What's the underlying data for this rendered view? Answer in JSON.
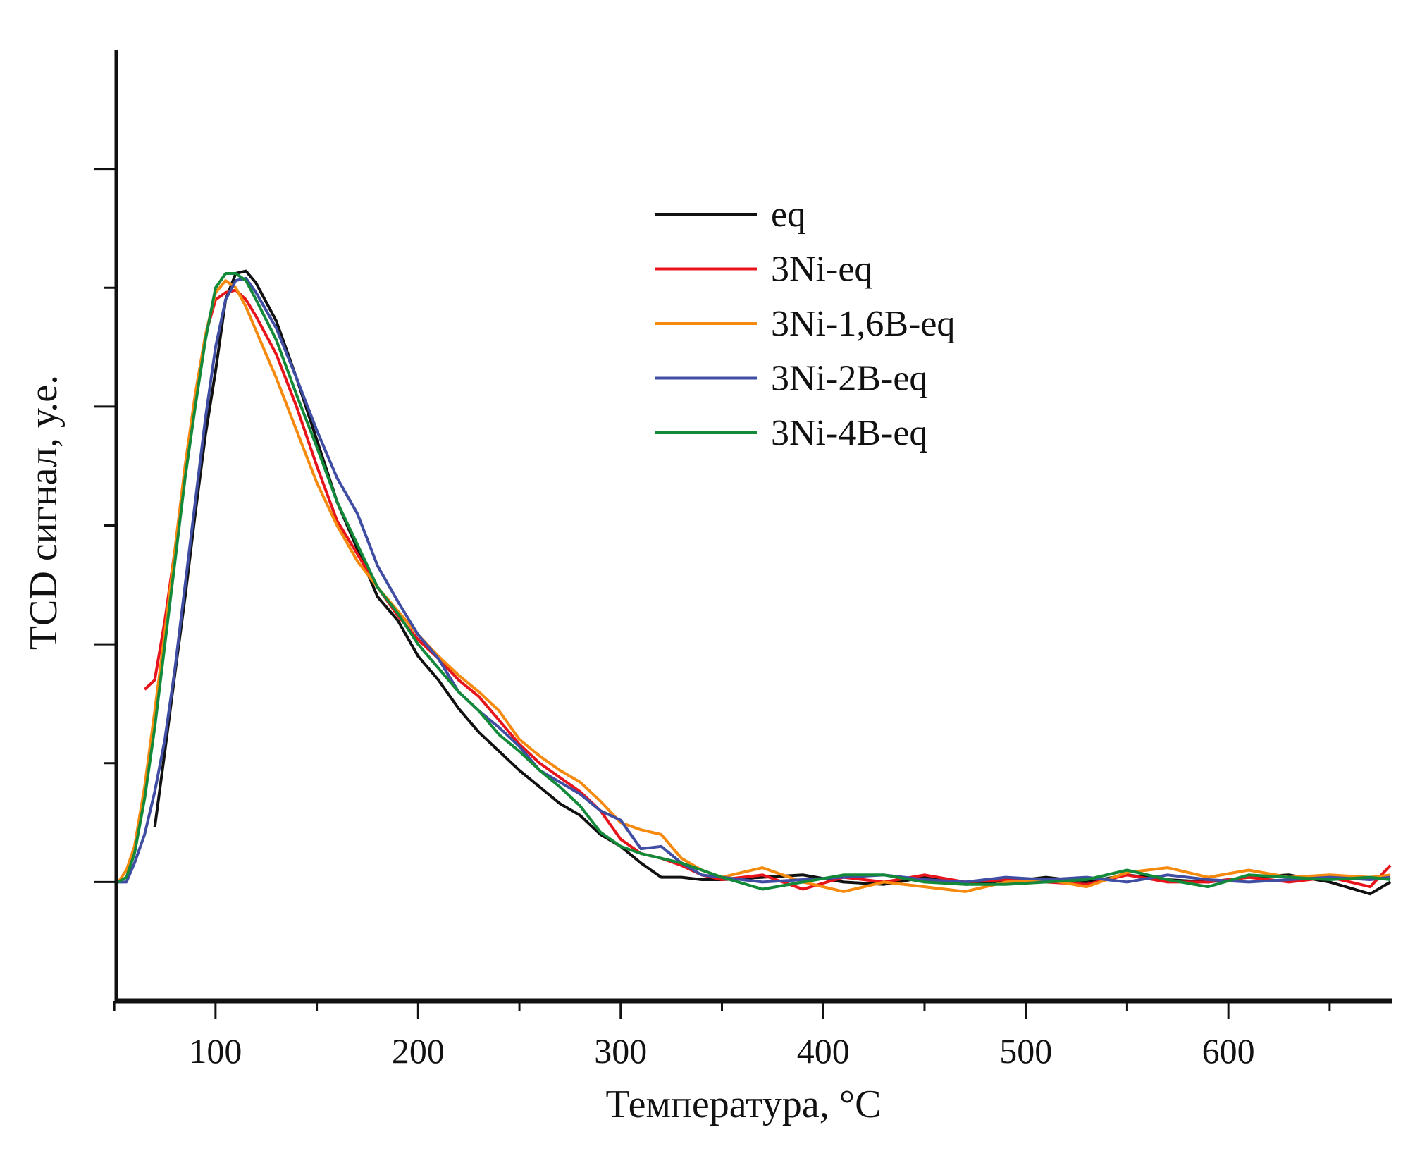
{
  "chart_data": {
    "type": "line",
    "title": "",
    "xlabel": "Температура, °C",
    "ylabel": "TCD сигнал, у.е.",
    "xlim": [
      51,
      681
    ],
    "ylim": [
      -0.5,
      3.5
    ],
    "x_major_ticks": [
      100,
      200,
      300,
      400,
      500,
      600
    ],
    "x_tick_labels": [
      "100",
      "200",
      "300",
      "400",
      "500",
      "600"
    ],
    "x_minor_ticks": [
      50,
      150,
      250,
      350,
      450,
      550,
      650
    ],
    "y_major_ticks": [
      0,
      1,
      2,
      3
    ],
    "y_minor_ticks": [
      0.5,
      1.5,
      2.5
    ],
    "y_tick_labels_shown": false,
    "grid": false,
    "legend_position": "top-right-center",
    "x": [
      52,
      56,
      60,
      65,
      70,
      75,
      80,
      85,
      90,
      95,
      100,
      105,
      110,
      115,
      120,
      130,
      140,
      150,
      160,
      170,
      180,
      190,
      200,
      210,
      220,
      230,
      240,
      250,
      260,
      270,
      280,
      290,
      300,
      310,
      320,
      330,
      340,
      350,
      370,
      390,
      410,
      430,
      450,
      470,
      490,
      510,
      530,
      550,
      570,
      590,
      610,
      630,
      650,
      670,
      680
    ],
    "series": [
      {
        "name": "eq",
        "color": "#111111",
        "values": [
          null,
          null,
          null,
          null,
          0.23,
          0.55,
          0.88,
          1.2,
          1.55,
          1.88,
          2.15,
          2.45,
          2.56,
          2.57,
          2.52,
          2.36,
          2.12,
          1.86,
          1.6,
          1.4,
          1.2,
          1.1,
          0.95,
          0.85,
          0.73,
          0.63,
          0.55,
          0.47,
          0.4,
          0.33,
          0.28,
          0.2,
          0.15,
          0.08,
          0.02,
          0.02,
          0.01,
          0.01,
          0.02,
          0.03,
          0.0,
          -0.01,
          0.02,
          -0.01,
          0.0,
          0.02,
          0.0,
          0.03,
          0.01,
          0.0,
          0.02,
          0.03,
          0.0,
          -0.05,
          0.0
        ]
      },
      {
        "name": "3Ni-eq",
        "color": "#e8141c",
        "values": [
          null,
          null,
          null,
          0.81,
          0.85,
          1.1,
          1.4,
          1.75,
          2.05,
          2.3,
          2.45,
          2.48,
          2.49,
          2.45,
          2.38,
          2.22,
          2.0,
          1.75,
          1.52,
          1.38,
          1.24,
          1.12,
          1.02,
          0.94,
          0.85,
          0.78,
          0.68,
          0.58,
          0.5,
          0.44,
          0.38,
          0.3,
          0.18,
          0.12,
          0.1,
          0.07,
          0.03,
          0.01,
          0.03,
          -0.03,
          0.02,
          0.0,
          0.03,
          0.0,
          0.01,
          0.0,
          -0.01,
          0.03,
          0.0,
          0.0,
          0.02,
          0.0,
          0.02,
          -0.02,
          0.07
        ]
      },
      {
        "name": "3Ni-1,6B-eq",
        "color": "#f58a0f",
        "values": [
          0,
          0.05,
          0.15,
          0.4,
          0.72,
          1.05,
          1.4,
          1.75,
          2.05,
          2.3,
          2.48,
          2.53,
          2.5,
          2.42,
          2.32,
          2.12,
          1.9,
          1.68,
          1.5,
          1.35,
          1.24,
          1.14,
          1.04,
          0.95,
          0.87,
          0.8,
          0.72,
          0.6,
          0.53,
          0.47,
          0.42,
          0.34,
          0.25,
          0.22,
          0.2,
          0.1,
          0.05,
          0.02,
          0.06,
          0.0,
          -0.04,
          0.0,
          -0.02,
          -0.04,
          0.0,
          0.01,
          -0.02,
          0.04,
          0.06,
          0.02,
          0.05,
          0.02,
          0.03,
          0.02,
          0.03
        ]
      },
      {
        "name": "3Ni-2B-eq",
        "color": "#3f4ea3",
        "values": [
          0,
          0.0,
          0.08,
          0.2,
          0.38,
          0.6,
          0.9,
          1.25,
          1.6,
          1.95,
          2.25,
          2.45,
          2.53,
          2.54,
          2.48,
          2.33,
          2.12,
          1.9,
          1.7,
          1.55,
          1.33,
          1.18,
          1.04,
          0.94,
          0.8,
          0.72,
          0.65,
          0.57,
          0.47,
          0.42,
          0.37,
          0.3,
          0.26,
          0.14,
          0.15,
          0.08,
          0.03,
          0.02,
          0.0,
          0.01,
          0.02,
          0.03,
          0.01,
          0.0,
          0.02,
          0.01,
          0.02,
          0.0,
          0.03,
          0.01,
          0.0,
          0.01,
          0.02,
          0.01,
          0.02
        ]
      },
      {
        "name": "3Ni-4B-eq",
        "color": "#138a3a",
        "values": [
          0,
          0.02,
          0.12,
          0.35,
          0.65,
          1.0,
          1.35,
          1.7,
          2.0,
          2.28,
          2.5,
          2.56,
          2.56,
          2.53,
          2.45,
          2.28,
          2.05,
          1.83,
          1.6,
          1.42,
          1.24,
          1.13,
          1.0,
          0.9,
          0.8,
          0.72,
          0.62,
          0.55,
          0.47,
          0.4,
          0.32,
          0.21,
          0.15,
          0.12,
          0.1,
          0.08,
          0.05,
          0.02,
          -0.03,
          0.0,
          0.03,
          0.03,
          0.0,
          -0.01,
          -0.01,
          0.0,
          0.01,
          0.05,
          0.01,
          -0.02,
          0.03,
          0.02,
          0.01,
          0.02,
          0.01
        ]
      }
    ]
  }
}
